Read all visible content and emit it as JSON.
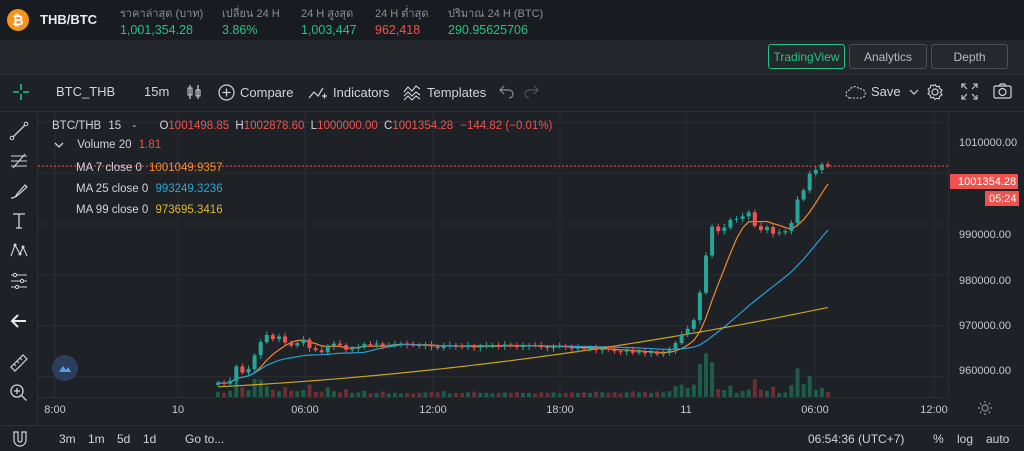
{
  "ticker": {
    "pair": "THB/BTC",
    "coin_symbol": "₿",
    "stats": [
      {
        "label": "ราคาล่าสุด (บาท)",
        "value": "1,001,354.28",
        "color": "green"
      },
      {
        "label": "เปลี่ยน 24 H",
        "value": "3.86%",
        "color": "green"
      },
      {
        "label": "24 H สูงสุด",
        "value": "1,003,447",
        "color": "green"
      },
      {
        "label": "24 H ต่ำสุด",
        "value": "962,418",
        "color": "red"
      },
      {
        "label": "ปริมาณ 24 H (BTC)",
        "value": "290.95625706",
        "color": "green"
      }
    ]
  },
  "view_buttons": {
    "tradingview": "TradingView",
    "analytics": "Analytics",
    "depth": "Depth"
  },
  "toolbar": {
    "symbol": "BTC_THB",
    "interval": "15m",
    "compare": "Compare",
    "indicators": "Indicators",
    "templates": "Templates",
    "save": "Save"
  },
  "legend": {
    "title_symbol": "BTC/THB",
    "title_interval": "15",
    "title_dash": "-",
    "o_label": "O",
    "o_value": "1001498.85",
    "h_label": "H",
    "h_value": "1002878.60",
    "l_label": "L",
    "l_value": "1000000.00",
    "c_label": "C",
    "c_value": "1001354.28",
    "change": "−144.82 (−0.01%)",
    "volume_label": "Volume 20",
    "volume_value": "1.81",
    "ma7_label": "MA 7 close 0",
    "ma7_value": "1001049.9357",
    "ma25_label": "MA 25 close 0",
    "ma25_value": "993249.3236",
    "ma99_label": "MA 99 close 0",
    "ma99_value": "973695.3416"
  },
  "colors": {
    "up": "#26a69a",
    "down": "#ef5350",
    "ma7": "#f08c2a",
    "ma25": "#2a9fd6",
    "ma99": "#c9a227",
    "accent": "#26c281"
  },
  "chart_data": {
    "type": "candlestick",
    "y_ticks": [
      "1010000.00",
      "1000000.00",
      "990000.00",
      "980000.00",
      "970000.00",
      "960000.00"
    ],
    "ylim": [
      956000,
      1012000
    ],
    "x_ticks": [
      "8:00",
      "10",
      "06:00",
      "12:00",
      "18:00",
      "11",
      "06:00",
      "12:00"
    ],
    "last_price": "1001354.28",
    "countdown": "05:24",
    "closes": [
      958800,
      958600,
      959200,
      962000,
      960800,
      961500,
      964200,
      966800,
      968200,
      967400,
      967900,
      966700,
      966100,
      966600,
      967300,
      965600,
      965200,
      964800,
      966000,
      966500,
      966200,
      965300,
      965500,
      965800,
      966400,
      966300,
      966500,
      966100,
      966200,
      966400,
      966500,
      966300,
      966200,
      966000,
      966300,
      965900,
      965600,
      966100,
      966200,
      966000,
      965800,
      966100,
      965700,
      965900,
      966100,
      966200,
      966000,
      966300,
      966100,
      965800,
      966000,
      966200,
      966100,
      965800,
      965600,
      965900,
      966000,
      965800,
      965500,
      965700,
      965400,
      965600,
      965200,
      965500,
      965300,
      965000,
      964900,
      965200,
      964700,
      965000,
      964600,
      964800,
      964400,
      964700,
      965200,
      966600,
      968300,
      969400,
      971100,
      976500,
      983800,
      989500,
      988600,
      989300,
      990800,
      991000,
      991500,
      992300,
      989600,
      988800,
      989400,
      988100,
      988300,
      988600,
      990200,
      994800,
      996600,
      999900,
      1000600,
      1001700,
      1001354
    ]
  }
}
